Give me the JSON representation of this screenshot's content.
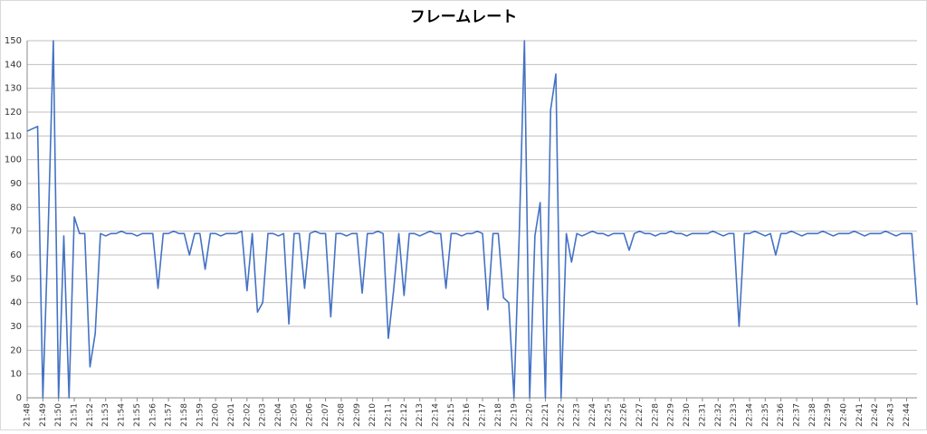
{
  "chart_data": {
    "type": "line",
    "title": "フレームレート",
    "categories": [
      "21:48",
      null,
      null,
      "21:49",
      null,
      null,
      "21:50",
      null,
      null,
      "21:51",
      null,
      null,
      "21:52",
      null,
      null,
      "21:53",
      null,
      null,
      "21:54",
      null,
      null,
      "21:55",
      null,
      null,
      "21:56",
      null,
      null,
      "21:57",
      null,
      null,
      "21:58",
      null,
      null,
      "21:59",
      null,
      null,
      "22:00",
      null,
      null,
      "22:01",
      null,
      null,
      "22:02",
      null,
      null,
      "22:03",
      null,
      null,
      "22:04",
      null,
      null,
      "22:05",
      null,
      null,
      "22:06",
      null,
      null,
      "22:07",
      null,
      null,
      "22:08",
      null,
      null,
      "22:09",
      null,
      null,
      "22:10",
      null,
      null,
      "22:11",
      null,
      null,
      "22:12",
      null,
      null,
      "22:13",
      null,
      null,
      "22:14",
      null,
      null,
      "22:15",
      null,
      null,
      "22:16",
      null,
      null,
      "22:17",
      null,
      null,
      "22:18",
      null,
      null,
      "22:19",
      null,
      null,
      "22:20",
      null,
      null,
      "22:21",
      null,
      null,
      "22:22",
      null,
      null,
      "22:23",
      null,
      null,
      "22:24",
      null,
      null,
      "22:25",
      null,
      null,
      "22:26",
      null,
      null,
      "22:27",
      null,
      null,
      "22:28",
      null,
      null,
      "22:29",
      null,
      null,
      "22:30",
      null,
      null,
      "22:31",
      null,
      null,
      "22:32",
      null,
      null,
      "22:33",
      null,
      null,
      "22:34",
      null,
      null,
      "22:35",
      null,
      null,
      "22:36",
      null,
      null,
      "22:37",
      null,
      null,
      "22:38",
      null,
      null,
      "22:39",
      null,
      null,
      "22:40",
      null,
      null,
      "22:41",
      null,
      null,
      "22:42",
      null,
      null,
      "22:43",
      null,
      null,
      "22:44",
      null,
      null
    ],
    "values": [
      112,
      113,
      114,
      0,
      69,
      150,
      0,
      68,
      0,
      76,
      69,
      69,
      13,
      27,
      69,
      68,
      69,
      69,
      70,
      69,
      69,
      68,
      69,
      69,
      69,
      46,
      69,
      69,
      70,
      69,
      69,
      60,
      69,
      69,
      54,
      69,
      69,
      68,
      69,
      69,
      69,
      70,
      45,
      69,
      36,
      40,
      69,
      69,
      68,
      69,
      31,
      69,
      69,
      46,
      69,
      70,
      69,
      69,
      34,
      69,
      69,
      68,
      69,
      69,
      44,
      69,
      69,
      70,
      69,
      25,
      45,
      69,
      43,
      69,
      69,
      68,
      69,
      70,
      69,
      69,
      46,
      69,
      69,
      68,
      69,
      69,
      70,
      69,
      37,
      69,
      69,
      42,
      40,
      0,
      68,
      150,
      0,
      68,
      82,
      0,
      121,
      136,
      0,
      69,
      57,
      69,
      68,
      69,
      70,
      69,
      69,
      68,
      69,
      69,
      69,
      62,
      69,
      70,
      69,
      69,
      68,
      69,
      69,
      70,
      69,
      69,
      68,
      69,
      69,
      69,
      69,
      70,
      69,
      68,
      69,
      69,
      30,
      69,
      69,
      70,
      69,
      68,
      69,
      60,
      69,
      69,
      70,
      69,
      68,
      69,
      69,
      69,
      70,
      69,
      68,
      69,
      69,
      69,
      70,
      69,
      68,
      69,
      69,
      69,
      70,
      69,
      68,
      69,
      69,
      69,
      39
    ],
    "color": "#4472c4",
    "ylim": [
      0,
      150
    ],
    "yticks": [
      0,
      10,
      20,
      30,
      40,
      50,
      60,
      70,
      80,
      90,
      100,
      110,
      120,
      130,
      140,
      150
    ],
    "grid": true
  }
}
